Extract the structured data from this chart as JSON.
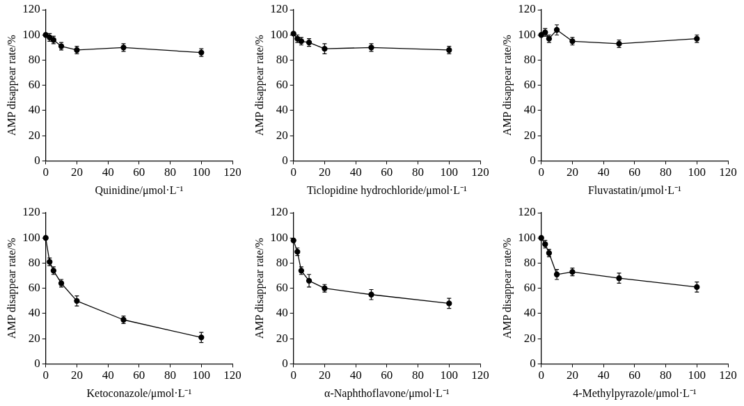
{
  "chart_data": [
    {
      "type": "line",
      "xlabel": "Quinidine/μmol·L⁻¹",
      "ylabel": "AMP disappear rate/%",
      "x": [
        0,
        2.5,
        5,
        10,
        20,
        50,
        100
      ],
      "values": [
        100,
        98,
        96,
        91,
        88,
        90,
        86
      ],
      "errors": [
        null,
        3,
        3,
        3,
        3,
        3,
        3
      ],
      "color": "#000000",
      "marker": "circle",
      "xlim": [
        0,
        120
      ],
      "xticks": [
        0,
        20,
        40,
        60,
        80,
        100,
        120
      ],
      "ylim": [
        0,
        120
      ],
      "yticks": [
        0,
        20,
        40,
        60,
        80,
        100,
        120
      ],
      "grid": false,
      "legend": false
    },
    {
      "type": "line",
      "xlabel": "Ticlopidine hydrochloride/μmol·L⁻¹",
      "ylabel": "AMP disappear rate/%",
      "x": [
        0,
        2.5,
        5,
        10,
        20,
        50,
        100
      ],
      "values": [
        101,
        97,
        95,
        94,
        89,
        90,
        88
      ],
      "errors": [
        null,
        3,
        3,
        3,
        4,
        3,
        3
      ],
      "color": "#000000",
      "marker": "circle",
      "xlim": [
        0,
        120
      ],
      "xticks": [
        0,
        20,
        40,
        60,
        80,
        100,
        120
      ],
      "ylim": [
        0,
        120
      ],
      "yticks": [
        0,
        20,
        40,
        60,
        80,
        100,
        120
      ],
      "grid": false,
      "legend": false
    },
    {
      "type": "line",
      "xlabel": "Fluvastatin/μmol·L⁻¹",
      "ylabel": "AMP disappear rate/%",
      "x": [
        0,
        2.5,
        5,
        10,
        20,
        50,
        100
      ],
      "values": [
        100,
        102,
        97,
        104,
        95,
        93,
        97
      ],
      "errors": [
        null,
        3,
        3,
        4,
        3,
        3,
        3
      ],
      "color": "#000000",
      "marker": "circle",
      "xlim": [
        0,
        120
      ],
      "xticks": [
        0,
        20,
        40,
        60,
        80,
        100,
        120
      ],
      "ylim": [
        0,
        120
      ],
      "yticks": [
        0,
        20,
        40,
        60,
        80,
        100,
        120
      ],
      "grid": false,
      "legend": false
    },
    {
      "type": "line",
      "xlabel": "Ketoconazole/μmol·L⁻¹",
      "ylabel": "AMP disappear rate/%",
      "x": [
        0,
        2.5,
        5,
        10,
        20,
        50,
        100
      ],
      "values": [
        100,
        81,
        74,
        64,
        50,
        35,
        21
      ],
      "errors": [
        null,
        3,
        3,
        3,
        4,
        3,
        4
      ],
      "color": "#000000",
      "marker": "circle",
      "xlim": [
        0,
        120
      ],
      "xticks": [
        0,
        20,
        40,
        60,
        80,
        100,
        120
      ],
      "ylim": [
        0,
        120
      ],
      "yticks": [
        0,
        20,
        40,
        60,
        80,
        100,
        120
      ],
      "grid": false,
      "legend": false
    },
    {
      "type": "line",
      "xlabel": "α-Naphthoflavone/μmol·L⁻¹",
      "ylabel": "AMP disappear rate/%",
      "x": [
        0,
        2.5,
        5,
        10,
        20,
        50,
        100
      ],
      "values": [
        98,
        89,
        74,
        66,
        60,
        55,
        48
      ],
      "errors": [
        null,
        3,
        3,
        5,
        3,
        4,
        4
      ],
      "color": "#000000",
      "marker": "circle",
      "xlim": [
        0,
        120
      ],
      "xticks": [
        0,
        20,
        40,
        60,
        80,
        100,
        120
      ],
      "ylim": [
        0,
        120
      ],
      "yticks": [
        0,
        20,
        40,
        60,
        80,
        100,
        120
      ],
      "grid": false,
      "legend": false
    },
    {
      "type": "line",
      "xlabel": "4-Methylpyrazole/μmol·L⁻¹",
      "ylabel": "AMP disappear rate/%",
      "x": [
        0,
        2.5,
        5,
        10,
        20,
        50,
        100
      ],
      "values": [
        100,
        95,
        88,
        71,
        73,
        68,
        61
      ],
      "errors": [
        null,
        3,
        3,
        4,
        3,
        4,
        4
      ],
      "color": "#000000",
      "marker": "circle",
      "xlim": [
        0,
        120
      ],
      "xticks": [
        0,
        20,
        40,
        60,
        80,
        100,
        120
      ],
      "ylim": [
        0,
        120
      ],
      "yticks": [
        0,
        20,
        40,
        60,
        80,
        100,
        120
      ],
      "grid": false,
      "legend": false
    }
  ]
}
